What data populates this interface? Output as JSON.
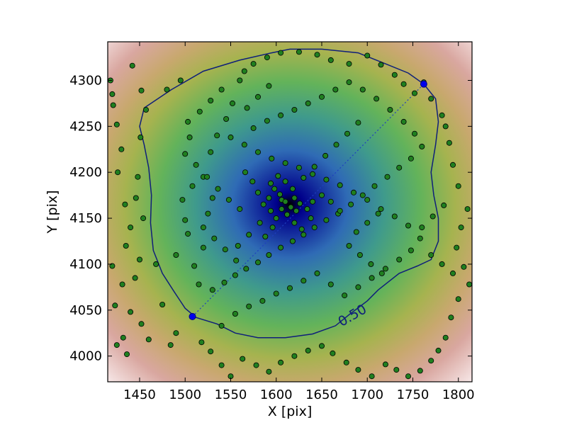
{
  "chart_data": {
    "type": "scatter",
    "title": "",
    "xlabel": "X [pix]",
    "ylabel": "Y [pix]",
    "xlim": [
      1415,
      1815
    ],
    "ylim": [
      3972,
      4342
    ],
    "xticks": [
      1450,
      1500,
      1550,
      1600,
      1650,
      1700,
      1750,
      1800
    ],
    "yticks": [
      4000,
      4050,
      4100,
      4150,
      4200,
      4250,
      4300
    ],
    "grid": false,
    "legend": "none",
    "background": {
      "kind": "density map",
      "center": [
        1615,
        4165
      ],
      "colormap": [
        "#000000",
        "#00008b",
        "#2f6bb5",
        "#3f9a8c",
        "#63b35a",
        "#a6b34f",
        "#c8a86e",
        "#d9a7a0",
        "#f6e6e6"
      ]
    },
    "contour": {
      "label": "0.50",
      "level": 0.5,
      "color": "#0f1f7a",
      "path": [
        [
          1455,
          4270
        ],
        [
          1485,
          4290
        ],
        [
          1520,
          4310
        ],
        [
          1560,
          4322
        ],
        [
          1595,
          4330
        ],
        [
          1615,
          4334
        ],
        [
          1650,
          4334
        ],
        [
          1690,
          4330
        ],
        [
          1720,
          4318
        ],
        [
          1745,
          4308
        ],
        [
          1762,
          4296
        ],
        [
          1775,
          4280
        ],
        [
          1778,
          4255
        ],
        [
          1775,
          4230
        ],
        [
          1770,
          4200
        ],
        [
          1773,
          4175
        ],
        [
          1778,
          4150
        ],
        [
          1778,
          4125
        ],
        [
          1770,
          4105
        ],
        [
          1755,
          4098
        ],
        [
          1735,
          4090
        ],
        [
          1712,
          4072
        ],
        [
          1700,
          4060
        ],
        [
          1680,
          4045
        ],
        [
          1665,
          4033
        ],
        [
          1640,
          4024
        ],
        [
          1610,
          4020
        ],
        [
          1580,
          4020
        ],
        [
          1555,
          4025
        ],
        [
          1535,
          4035
        ],
        [
          1512,
          4042
        ],
        [
          1500,
          4052
        ],
        [
          1488,
          4070
        ],
        [
          1475,
          4090
        ],
        [
          1465,
          4115
        ],
        [
          1462,
          4145
        ],
        [
          1463,
          4175
        ],
        [
          1460,
          4205
        ],
        [
          1455,
          4230
        ],
        [
          1450,
          4250
        ],
        [
          1455,
          4270
        ]
      ]
    },
    "line_endpoints": [
      [
        1508,
        4043
      ],
      [
        1762,
        4296
      ]
    ],
    "series": [
      {
        "kind": "points",
        "color": "#1f7f1f",
        "points": [
          [
            1418,
            4300
          ],
          [
            1420,
            4285
          ],
          [
            1421,
            4273
          ],
          [
            1425,
            4252
          ],
          [
            1430,
            4225
          ],
          [
            1426,
            4200
          ],
          [
            1434,
            4165
          ],
          [
            1440,
            4140
          ],
          [
            1435,
            4120
          ],
          [
            1420,
            4098
          ],
          [
            1431,
            4078
          ],
          [
            1423,
            4055
          ],
          [
            1425,
            4012
          ],
          [
            1432,
            4020
          ],
          [
            1436,
            4002
          ],
          [
            1442,
            4316
          ],
          [
            1452,
            4289
          ],
          [
            1457,
            4268
          ],
          [
            1451,
            4238
          ],
          [
            1448,
            4195
          ],
          [
            1446,
            4172
          ],
          [
            1454,
            4150
          ],
          [
            1450,
            4105
          ],
          [
            1445,
            4085
          ],
          [
            1440,
            4048
          ],
          [
            1452,
            4035
          ],
          [
            1460,
            4018
          ],
          [
            1468,
            4100
          ],
          [
            1475,
            4056
          ],
          [
            1484,
            4012
          ],
          [
            1490,
            4025
          ],
          [
            1480,
            4290
          ],
          [
            1495,
            4300
          ],
          [
            1503,
            4255
          ],
          [
            1505,
            4238
          ],
          [
            1508,
            4185
          ],
          [
            1497,
            4170
          ],
          [
            1500,
            4148
          ],
          [
            1503,
            4133
          ],
          [
            1490,
            4110
          ],
          [
            1510,
            4098
          ],
          [
            1515,
            4078
          ],
          [
            1520,
            4118
          ],
          [
            1525,
            4155
          ],
          [
            1530,
            4172
          ],
          [
            1520,
            4195
          ],
          [
            1528,
            4222
          ],
          [
            1535,
            4240
          ],
          [
            1545,
            4258
          ],
          [
            1552,
            4275
          ],
          [
            1560,
            4300
          ],
          [
            1565,
            4310
          ],
          [
            1575,
            4318
          ],
          [
            1590,
            4325
          ],
          [
            1605,
            4330
          ],
          [
            1625,
            4331
          ],
          [
            1645,
            4328
          ],
          [
            1660,
            4322
          ],
          [
            1680,
            4318
          ],
          [
            1700,
            4327
          ],
          [
            1715,
            4317
          ],
          [
            1730,
            4306
          ],
          [
            1740,
            4296
          ],
          [
            1752,
            4286
          ],
          [
            1762,
            4298
          ],
          [
            1770,
            4280
          ],
          [
            1782,
            4262
          ],
          [
            1786,
            4250
          ],
          [
            1790,
            4232
          ],
          [
            1794,
            4208
          ],
          [
            1800,
            4185
          ],
          [
            1810,
            4160
          ],
          [
            1803,
            4140
          ],
          [
            1798,
            4118
          ],
          [
            1806,
            4097
          ],
          [
            1812,
            4078
          ],
          [
            1800,
            4062
          ],
          [
            1792,
            4042
          ],
          [
            1786,
            4020
          ],
          [
            1778,
            4006
          ],
          [
            1770,
            3995
          ],
          [
            1758,
            3984
          ],
          [
            1745,
            3978
          ],
          [
            1732,
            3985
          ],
          [
            1720,
            3991
          ],
          [
            1705,
            3978
          ],
          [
            1690,
            3985
          ],
          [
            1677,
            3993
          ],
          [
            1662,
            4003
          ],
          [
            1650,
            4011
          ],
          [
            1635,
            4006
          ],
          [
            1620,
            4000
          ],
          [
            1605,
            3993
          ],
          [
            1592,
            3983
          ],
          [
            1578,
            3990
          ],
          [
            1563,
            3997
          ],
          [
            1550,
            3978
          ],
          [
            1540,
            3990
          ],
          [
            1528,
            4005
          ],
          [
            1518,
            4015
          ],
          [
            1540,
            4033
          ],
          [
            1555,
            4046
          ],
          [
            1570,
            4054
          ],
          [
            1585,
            4060
          ],
          [
            1600,
            4068
          ],
          [
            1615,
            4074
          ],
          [
            1630,
            4082
          ],
          [
            1645,
            4090
          ],
          [
            1660,
            4078
          ],
          [
            1675,
            4066
          ],
          [
            1690,
            4075
          ],
          [
            1705,
            4085
          ],
          [
            1720,
            4095
          ],
          [
            1735,
            4105
          ],
          [
            1748,
            4115
          ],
          [
            1758,
            4128
          ],
          [
            1745,
            4142
          ],
          [
            1730,
            4152
          ],
          [
            1715,
            4160
          ],
          [
            1700,
            4170
          ],
          [
            1685,
            4178
          ],
          [
            1670,
            4186
          ],
          [
            1655,
            4192
          ],
          [
            1640,
            4198
          ],
          [
            1625,
            4205
          ],
          [
            1610,
            4210
          ],
          [
            1595,
            4215
          ],
          [
            1580,
            4222
          ],
          [
            1565,
            4230
          ],
          [
            1550,
            4238
          ],
          [
            1575,
            4248
          ],
          [
            1590,
            4256
          ],
          [
            1605,
            4262
          ],
          [
            1620,
            4268
          ],
          [
            1635,
            4275
          ],
          [
            1650,
            4282
          ],
          [
            1665,
            4290
          ],
          [
            1680,
            4298
          ],
          [
            1695,
            4290
          ],
          [
            1710,
            4280
          ],
          [
            1725,
            4268
          ],
          [
            1740,
            4255
          ],
          [
            1752,
            4242
          ],
          [
            1760,
            4228
          ],
          [
            1748,
            4215
          ],
          [
            1735,
            4205
          ],
          [
            1722,
            4195
          ],
          [
            1708,
            4185
          ],
          [
            1695,
            4175
          ],
          [
            1682,
            4165
          ],
          [
            1668,
            4155
          ],
          [
            1655,
            4148
          ],
          [
            1642,
            4140
          ],
          [
            1630,
            4132
          ],
          [
            1618,
            4125
          ],
          [
            1605,
            4118
          ],
          [
            1592,
            4110
          ],
          [
            1580,
            4102
          ],
          [
            1567,
            4095
          ],
          [
            1555,
            4088
          ],
          [
            1543,
            4080
          ],
          [
            1530,
            4072
          ],
          [
            1558,
            4120
          ],
          [
            1570,
            4132
          ],
          [
            1582,
            4145
          ],
          [
            1594,
            4158
          ],
          [
            1606,
            4170
          ],
          [
            1618,
            4182
          ],
          [
            1630,
            4194
          ],
          [
            1642,
            4206
          ],
          [
            1654,
            4218
          ],
          [
            1666,
            4230
          ],
          [
            1678,
            4242
          ],
          [
            1690,
            4254
          ],
          [
            1598,
            4182
          ],
          [
            1604,
            4176
          ],
          [
            1610,
            4168
          ],
          [
            1616,
            4162
          ],
          [
            1622,
            4158
          ],
          [
            1612,
            4154
          ],
          [
            1606,
            4160
          ],
          [
            1600,
            4150
          ],
          [
            1592,
            4172
          ],
          [
            1586,
            4165
          ],
          [
            1620,
            4172
          ],
          [
            1626,
            4166
          ],
          [
            1610,
            4190
          ],
          [
            1602,
            4196
          ],
          [
            1594,
            4188
          ],
          [
            1634,
            4160
          ],
          [
            1640,
            4168
          ],
          [
            1596,
            4140
          ],
          [
            1588,
            4130
          ],
          [
            1620,
            4145
          ],
          [
            1628,
            4138
          ],
          [
            1638,
            4150
          ],
          [
            1580,
            4178
          ],
          [
            1574,
            4190
          ],
          [
            1566,
            4200
          ],
          [
            1650,
            4175
          ],
          [
            1660,
            4168
          ],
          [
            1670,
            4158
          ],
          [
            1560,
            4160
          ],
          [
            1548,
            4170
          ],
          [
            1536,
            4182
          ],
          [
            1524,
            4195
          ],
          [
            1512,
            4208
          ],
          [
            1500,
            4220
          ],
          [
            1680,
            4120
          ],
          [
            1692,
            4110
          ],
          [
            1704,
            4100
          ],
          [
            1716,
            4090
          ],
          [
            1688,
            4135
          ],
          [
            1700,
            4145
          ],
          [
            1712,
            4155
          ],
          [
            1520,
            4140
          ],
          [
            1532,
            4128
          ],
          [
            1544,
            4116
          ],
          [
            1556,
            4104
          ],
          [
            1568,
            4270
          ],
          [
            1580,
            4282
          ],
          [
            1592,
            4294
          ],
          [
            1540,
            4290
          ],
          [
            1528,
            4278
          ],
          [
            1516,
            4266
          ],
          [
            1760,
            4140
          ],
          [
            1772,
            4152
          ],
          [
            1784,
            4164
          ],
          [
            1770,
            4110
          ],
          [
            1782,
            4100
          ],
          [
            1794,
            4090
          ]
        ]
      }
    ]
  }
}
